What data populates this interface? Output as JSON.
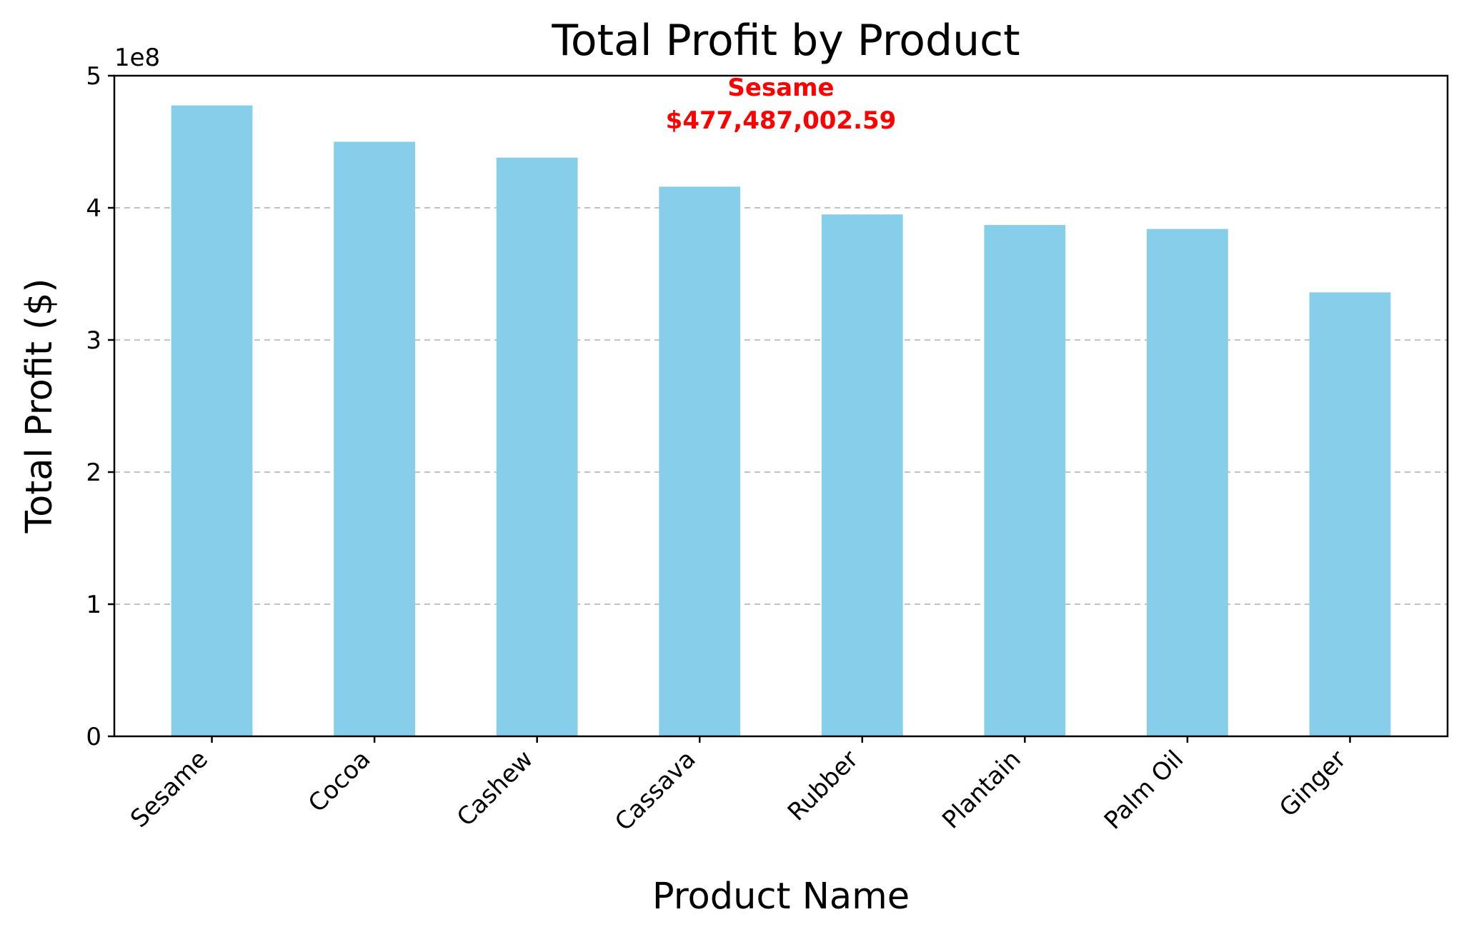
{
  "chart_data": {
    "type": "bar",
    "title": "Total Profit by Product",
    "xlabel": "Product Name",
    "ylabel": "Total Profit ($)",
    "y_offset_text": "1e8",
    "categories": [
      "Sesame",
      "Cocoa",
      "Cashew",
      "Cassava",
      "Rubber",
      "Plantain",
      "Palm Oil",
      "Ginger"
    ],
    "values": [
      477487002.59,
      450000000,
      438000000,
      416000000,
      395000000,
      387000000,
      384000000,
      336000000
    ],
    "ylim": [
      0,
      500000000
    ],
    "yticks": [
      0,
      100000000,
      200000000,
      300000000,
      400000000,
      500000000
    ],
    "ytick_labels": [
      "0",
      "1",
      "2",
      "3",
      "4",
      "5"
    ],
    "grid": {
      "axis": "y",
      "style": "dashed"
    },
    "colors": {
      "bar": "#87ceeb",
      "annotation": "#ff0000",
      "grid": "#b0b0b0"
    },
    "annotation": {
      "category": "Sesame",
      "lines": [
        "Sesame",
        "$477,487,002.59"
      ]
    }
  }
}
